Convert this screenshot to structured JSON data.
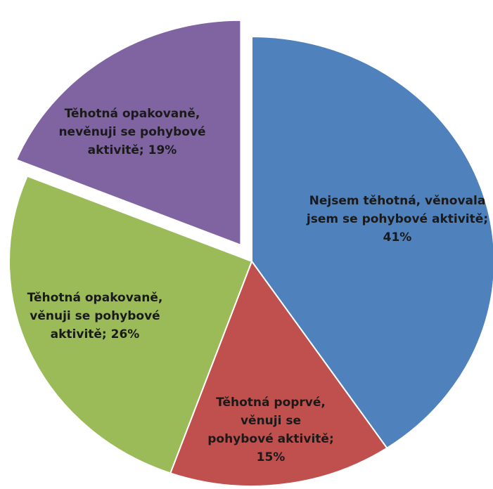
{
  "chart_data": {
    "type": "pie",
    "values": [
      41,
      15,
      26,
      19
    ],
    "value_labels": [
      "Nejsem těhotná, věnovala jsem se pohybové aktivitě; 41%",
      "Těhotná poprvé, věnuji se pohybové aktivitě; 15%",
      "Těhotná opakovaně, věnuji se pohybové aktivitě; 26%",
      "Těhotná opakovaně, nevěnuji se pohybové aktivitě; 19%"
    ],
    "colors": [
      "#4f81bd",
      "#c0504d",
      "#9bbb59",
      "#8064a2"
    ],
    "exploded": [
      false,
      false,
      false,
      true
    ]
  }
}
